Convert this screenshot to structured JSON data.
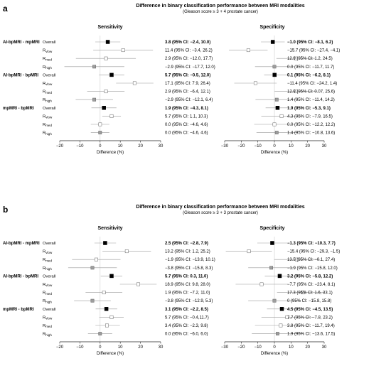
{
  "chart_data": [
    {
      "type": "forest",
      "panel": "a",
      "title": "Difference in binary classification performance between MRI modalities",
      "subtitle": "(Gleason score ≥ 3 + 4 prostate cancer)",
      "subplots": [
        {
          "name": "Sensitivity",
          "xlabel": "Difference (%)",
          "xlim": [
            -20,
            30
          ],
          "xticks": [
            -20,
            -10,
            0,
            10,
            20,
            30
          ],
          "rows": [
            {
              "group": "AI-bpMRI - mpMRI",
              "label": "Overall",
              "value": 3.8,
              "low": -2.4,
              "high": 10.0,
              "text": "3.8 (95% CI: −2.4, 10.0)",
              "bold": true
            },
            {
              "group": "",
              "label": "Rvlow",
              "value": 11.4,
              "low": -3.4,
              "high": 26.2,
              "text": "11.4 (95% CI: −3.4, 26.2)",
              "bold": false
            },
            {
              "group": "",
              "label": "Rmed",
              "value": 2.9,
              "low": -12.0,
              "high": 17.7,
              "text": "2.9 (95% CI: −12.0, 17.7)",
              "bold": false
            },
            {
              "group": "",
              "label": "Rhigh",
              "value": -2.9,
              "low": -17.7,
              "high": 12.0,
              "text": "−2.9 (95% CI: −17.7, 12.0)",
              "bold": false
            },
            {
              "group": "AI-bpMRI - bpMRI",
              "label": "Overall",
              "value": 5.7,
              "low": -0.5,
              "high": 12.0,
              "text": "5.7 (95% CI: −0.5, 12.0)",
              "bold": true
            },
            {
              "group": "",
              "label": "Rvlow",
              "value": 17.1,
              "low": 7.9,
              "high": 26.4,
              "text": "17.1 (95% CI: 7.9, 26.4)",
              "bold": false
            },
            {
              "group": "",
              "label": "Rmed",
              "value": 2.9,
              "low": -6.4,
              "high": 12.1,
              "text": "2.9 (95% CI: −6.4, 12.1)",
              "bold": false
            },
            {
              "group": "",
              "label": "Rhigh",
              "value": -2.9,
              "low": -12.1,
              "high": 6.4,
              "text": "−2.9 (95% CI: −12.1, 6.4)",
              "bold": false
            },
            {
              "group": "mpMRI - bpMRI",
              "label": "Overall",
              "value": 1.9,
              "low": -4.3,
              "high": 8.1,
              "text": "1.9 (95% CI: −4.3, 8.1)",
              "bold": true
            },
            {
              "group": "",
              "label": "Rvlow",
              "value": 5.7,
              "low": 1.1,
              "high": 10.3,
              "text": "5.7 (95% CI: 1.1, 10.3)",
              "bold": false
            },
            {
              "group": "",
              "label": "Rmed",
              "value": 0.0,
              "low": -4.6,
              "high": 4.6,
              "text": "0.0 (95% CI: −4.6, 4.6)",
              "bold": false
            },
            {
              "group": "",
              "label": "Rhigh",
              "value": 0.0,
              "low": -4.6,
              "high": 4.6,
              "text": "0.0 (95% CI: −4.6, 4.6)",
              "bold": false
            }
          ]
        },
        {
          "name": "Specificity",
          "xlabel": "Difference (%)",
          "xlim": [
            -30,
            30
          ],
          "xticks": [
            -30,
            -20,
            -10,
            0,
            10,
            20,
            30
          ],
          "rows": [
            {
              "value": -1.0,
              "low": -8.1,
              "high": 6.2,
              "text": "−1.0 (95% CI: −8.1, 6.2)",
              "bold": true
            },
            {
              "value": -15.7,
              "low": -27.4,
              "high": -4.1,
              "text": "−15.7 (95% CI: −27.4, −4.1)",
              "bold": false
            },
            {
              "value": 12.9,
              "low": 1.2,
              "high": 24.5,
              "text": "12.9 (95% CI: 1.2, 24.5)",
              "bold": false
            },
            {
              "value": 0.0,
              "low": -11.7,
              "high": 11.7,
              "text": "0.0 (95% CI: −11.7, 11.7)",
              "bold": false
            },
            {
              "value": 0.1,
              "low": -6.2,
              "high": 8.1,
              "text": "0.1 (95% CI: −6.2, 8.1)",
              "bold": true
            },
            {
              "value": -11.4,
              "low": -24.2,
              "high": 1.4,
              "text": "−11.4 (95% CI: −24.2, 1.4)",
              "bold": false
            },
            {
              "value": 12.9,
              "low": 0.07,
              "high": 25.6,
              "text": "12.9 (95% CI: 0.07, 25.6)",
              "bold": false
            },
            {
              "value": 1.4,
              "low": -11.4,
              "high": 14.2,
              "text": "1.4 (95% CI: −11.4, 14.2)",
              "bold": false
            },
            {
              "value": 1.9,
              "low": -5.3,
              "high": 9.1,
              "text": "1.9 (95% CI: −5.3, 9.1)",
              "bold": true
            },
            {
              "value": 4.3,
              "low": -7.9,
              "high": 16.5,
              "text": "4.3 (95% CI: −7.9, 16.5)",
              "bold": false
            },
            {
              "value": 0.0,
              "low": -12.2,
              "high": 12.2,
              "text": "0.0 (95% CI: −12.2, 12.2)",
              "bold": false
            },
            {
              "value": 1.4,
              "low": -10.8,
              "high": 13.6,
              "text": "1.4 (95% CI: −10.8, 13.6)",
              "bold": false
            }
          ]
        }
      ]
    },
    {
      "type": "forest",
      "panel": "b",
      "title": "Difference in binary classification performance between MRI modalities",
      "subtitle": "(Gleason score ≥ 3 + 3 prostate cancer)",
      "subplots": [
        {
          "name": "Sensitivity",
          "xlabel": "Difference (%)",
          "xlim": [
            -20,
            30
          ],
          "xticks": [
            -20,
            -10,
            0,
            10,
            20,
            30
          ],
          "rows": [
            {
              "group": "AI-bpMRI - mpMRI",
              "label": "Overall",
              "value": 2.5,
              "low": -2.8,
              "high": 7.9,
              "text": "2.5 (95% CI: −2.8, 7.9)",
              "bold": true
            },
            {
              "group": "",
              "label": "Rvlow",
              "value": 13.2,
              "low": 1.2,
              "high": 25.2,
              "text": "13.2 (95% CI: 1.2, 25.2)",
              "bold": false
            },
            {
              "group": "",
              "label": "Rmed",
              "value": -1.9,
              "low": -13.9,
              "high": 10.1,
              "text": "−1.9 (95% CI: −13.9, 10.1)",
              "bold": false
            },
            {
              "group": "",
              "label": "Rhigh",
              "value": -3.8,
              "low": -15.8,
              "high": 8.3,
              "text": "−3.8 (95% CI: −15.8, 8.3)",
              "bold": false
            },
            {
              "group": "AI-bpMRI - bpMRI",
              "label": "Overall",
              "value": 5.7,
              "low": 0.3,
              "high": 11.0,
              "text": "5.7 (95% CI: 0.3, 11.0)",
              "bold": true
            },
            {
              "group": "",
              "label": "Rvlow",
              "value": 18.9,
              "low": 9.8,
              "high": 28.0,
              "text": "18.9 (95% CI: 9.8, 28.0)",
              "bold": false
            },
            {
              "group": "",
              "label": "Rmed",
              "value": 1.9,
              "low": -7.2,
              "high": 11.0,
              "text": "1.9 (95% CI: −7.2, 11.0)",
              "bold": false
            },
            {
              "group": "",
              "label": "Rhigh",
              "value": -3.8,
              "low": -12.9,
              "high": 5.3,
              "text": "−3.8 (95% CI: −12.9, 5.3)",
              "bold": false
            },
            {
              "group": "mpMRI - bpMRI",
              "label": "Overall",
              "value": 3.1,
              "low": -2.2,
              "high": 8.5,
              "text": "3.1 (95% CI: −2.2, 8.5)",
              "bold": true
            },
            {
              "group": "",
              "label": "Rvlow",
              "value": 5.7,
              "low": -0.4,
              "high": 11.7,
              "text": "5.7 (95% CI: −0.4,11.7)",
              "bold": false
            },
            {
              "group": "",
              "label": "Rmed",
              "value": 3.4,
              "low": -2.3,
              "high": 9.8,
              "text": "3.4 (95% CI: −2.3, 9.8)",
              "bold": false
            },
            {
              "group": "",
              "label": "Rhigh",
              "value": 0.0,
              "low": -6.0,
              "high": 6.0,
              "text": "0.0 (95% CI: −6.0, 6.0)",
              "bold": false
            }
          ]
        },
        {
          "name": "Specificity",
          "xlabel": "Difference (%)",
          "xlim": [
            -30,
            30
          ],
          "xticks": [
            -30,
            -20,
            -10,
            0,
            10,
            20,
            30
          ],
          "rows": [
            {
              "value": -1.3,
              "low": -10.3,
              "high": 7.7,
              "text": "−1.3 (95% CI: −10.3, 7.7)",
              "bold": true
            },
            {
              "value": -15.4,
              "low": -29.3,
              "high": -1.5,
              "text": "−15.4 (95% CI: −29.3, −1.5)",
              "bold": false
            },
            {
              "value": 13.5,
              "low": -0.1,
              "high": 27.4,
              "text": "13.5 (95% CI: −0.1, 27.4)",
              "bold": false
            },
            {
              "value": -1.9,
              "low": -15.8,
              "high": 12.0,
              "text": "−1.9 (95% CI: −15.8, 12.0)",
              "bold": false
            },
            {
              "value": 3.2,
              "low": -5.8,
              "high": 12.2,
              "text": "3.2 (95% CI: −5.8, 12.2)",
              "bold": true
            },
            {
              "value": -7.7,
              "low": -23.4,
              "high": 8.1,
              "text": "−7.7 (95% CI: −23.4, 8.1)",
              "bold": false
            },
            {
              "value": 17.3,
              "low": 1.6,
              "high": 33.1,
              "text": "17.3 (95% CI: 1.6, 33.1)",
              "bold": false
            },
            {
              "value": 0.0,
              "low": -15.8,
              "high": 15.8,
              "text": "0 (95% CI: −15.8, 15.8)",
              "bold": false
            },
            {
              "value": 4.5,
              "low": -4.5,
              "high": 13.5,
              "text": "4.5 (95% CI: −4.5, 13.5)",
              "bold": true
            },
            {
              "value": 7.7,
              "low": -7.8,
              "high": 23.2,
              "text": "7.7 (95% CI: −7.8, 23.2)",
              "bold": false
            },
            {
              "value": 3.8,
              "low": -11.7,
              "high": 19.4,
              "text": "3.8 (95% CI: −11.7, 19.4)",
              "bold": false
            },
            {
              "value": 1.9,
              "low": -13.6,
              "high": 17.5,
              "text": "1.9 (95% CI: −13.6, 17.5)",
              "bold": false
            }
          ]
        }
      ]
    }
  ],
  "colors": {
    "overall_marker": "#000000",
    "vlow_marker": "#ffffff",
    "med_marker": "#ffffff",
    "high_marker": "#9e9e9e",
    "ci_line": "#9a9a9a",
    "axis": "#222222",
    "zero_line": "#cfcfcf"
  }
}
